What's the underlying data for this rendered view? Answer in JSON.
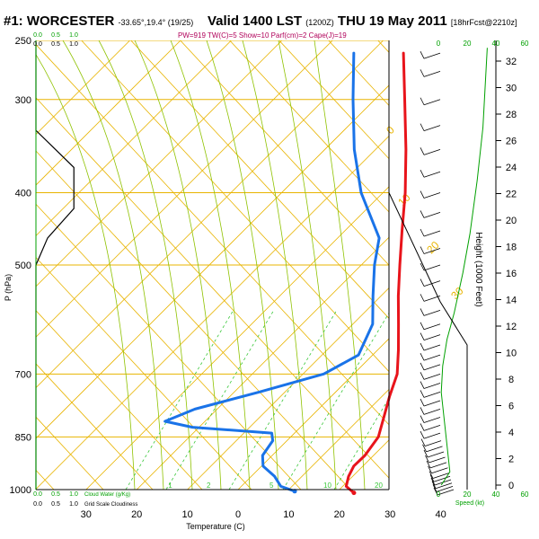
{
  "header": {
    "station": "#1: WORCESTER",
    "coords": "-33.65°,19.4° (19/25)",
    "valid": "Valid 1400 LST",
    "valid_z": "(1200Z)",
    "date": "THU 19 May 2011",
    "forecast": "[18hrFcst@2210z]",
    "indices": "PW=919 TW(C)=5 Show=10 Parf(cm)=2 Cape(J)=19"
  },
  "chart_data": {
    "type": "skew-t",
    "xlabel": "Temperature (C)",
    "ylabel": "P (hPa)",
    "y2label": "Height (1000 Feet)",
    "pressure_ticks": [
      250,
      300,
      400,
      500,
      700,
      850,
      1000
    ],
    "temperature_ticks": [
      -30,
      -20,
      -10,
      0,
      10,
      20,
      30,
      40
    ],
    "temperature_tick_labels": [
      "30",
      "20",
      "10",
      "0",
      "10",
      "20",
      "30",
      "40"
    ],
    "height_ticks": [
      0,
      2,
      4,
      6,
      8,
      10,
      12,
      14,
      16,
      18,
      20,
      22,
      24,
      26,
      28,
      30,
      32
    ],
    "mixing_ratio_labels": [
      ".1",
      "2",
      "5",
      "10",
      "20"
    ],
    "mixing_ratio_values": [
      0.1,
      2,
      5,
      10,
      20
    ],
    "isotherm_labels": [
      "0",
      "10",
      "20",
      "30"
    ],
    "cloud_water_label": "Cloud Water (g/Kg)",
    "grid_cloudiness_label": "Grid Scale Cloudiness",
    "cloud_scale_labels": [
      "0.0",
      "0.5",
      "1.0"
    ],
    "speed_label": "Speed (kt)",
    "speed_ticks": [
      "0",
      "20",
      "40",
      "60"
    ],
    "speed_ticks_low": [
      "0",
      "20"
    ],
    "cloudiness_profile": [
      {
        "p": 250,
        "v": 0.0
      },
      {
        "p": 330,
        "v": 0.0
      },
      {
        "p": 370,
        "v": 0.65
      },
      {
        "p": 420,
        "v": 0.65
      },
      {
        "p": 460,
        "v": 0.2
      },
      {
        "p": 500,
        "v": 0.0
      },
      {
        "p": 1000,
        "v": 0.0
      }
    ],
    "series": [
      {
        "name": "temperature",
        "color": "#e8141b",
        "points": [
          {
            "p": 1010,
            "t": 23.5
          },
          {
            "p": 990,
            "t": 20.7
          },
          {
            "p": 960,
            "t": 19.2
          },
          {
            "p": 930,
            "t": 18.2
          },
          {
            "p": 900,
            "t": 18.3
          },
          {
            "p": 850,
            "t": 17.3
          },
          {
            "p": 800,
            "t": 14.5
          },
          {
            "p": 750,
            "t": 11.5
          },
          {
            "p": 700,
            "t": 8.6
          },
          {
            "p": 650,
            "t": 4.1
          },
          {
            "p": 600,
            "t": -1.0
          },
          {
            "p": 550,
            "t": -6.6
          },
          {
            "p": 500,
            "t": -12.4
          },
          {
            "p": 450,
            "t": -18.7
          },
          {
            "p": 400,
            "t": -25.6
          },
          {
            "p": 350,
            "t": -34.0
          },
          {
            "p": 300,
            "t": -44.1
          },
          {
            "p": 260,
            "t": -53.5
          }
        ]
      },
      {
        "name": "dewpoint",
        "color": "#1a73e8",
        "points": [
          {
            "p": 1005,
            "t": 11.5
          },
          {
            "p": 990,
            "t": 7.8
          },
          {
            "p": 960,
            "t": 4.6
          },
          {
            "p": 930,
            "t": 0.3
          },
          {
            "p": 900,
            "t": -1.9
          },
          {
            "p": 860,
            "t": -2.8
          },
          {
            "p": 840,
            "t": -4.5
          },
          {
            "p": 825,
            "t": -21.3
          },
          {
            "p": 810,
            "t": -27.9
          },
          {
            "p": 780,
            "t": -24.4
          },
          {
            "p": 740,
            "t": -15.1
          },
          {
            "p": 700,
            "t": -5.9
          },
          {
            "p": 660,
            "t": -2.8
          },
          {
            "p": 600,
            "t": -6.1
          },
          {
            "p": 550,
            "t": -11.6
          },
          {
            "p": 500,
            "t": -17.4
          },
          {
            "p": 460,
            "t": -21.8
          },
          {
            "p": 400,
            "t": -34.3
          },
          {
            "p": 350,
            "t": -44.2
          },
          {
            "p": 300,
            "t": -54.3
          },
          {
            "p": 260,
            "t": -63.3
          }
        ]
      }
    ],
    "surface_temperature": 23.5,
    "surface_dewpoint": 11.5,
    "wind_barbs": [
      {
        "p": 1000,
        "spd": 5
      },
      {
        "p": 990,
        "spd": 5
      },
      {
        "p": 980,
        "spd": 10
      },
      {
        "p": 970,
        "spd": 10
      },
      {
        "p": 960,
        "spd": 10
      },
      {
        "p": 950,
        "spd": 10
      },
      {
        "p": 935,
        "spd": 10
      },
      {
        "p": 920,
        "spd": 10
      },
      {
        "p": 905,
        "spd": 10
      },
      {
        "p": 890,
        "spd": 10
      },
      {
        "p": 875,
        "spd": 10
      },
      {
        "p": 860,
        "spd": 10
      },
      {
        "p": 840,
        "spd": 10
      },
      {
        "p": 820,
        "spd": 10
      },
      {
        "p": 800,
        "spd": 10
      },
      {
        "p": 780,
        "spd": 10
      },
      {
        "p": 760,
        "spd": 10
      },
      {
        "p": 740,
        "spd": 10
      },
      {
        "p": 720,
        "spd": 10
      },
      {
        "p": 700,
        "spd": 10
      },
      {
        "p": 680,
        "spd": 10
      },
      {
        "p": 660,
        "spd": 10
      },
      {
        "p": 640,
        "spd": 10
      },
      {
        "p": 620,
        "spd": 10
      },
      {
        "p": 600,
        "spd": 10
      },
      {
        "p": 575,
        "spd": 10
      },
      {
        "p": 550,
        "spd": 10
      },
      {
        "p": 525,
        "spd": 10
      },
      {
        "p": 500,
        "spd": 10
      },
      {
        "p": 475,
        "spd": 10
      },
      {
        "p": 450,
        "spd": 10
      },
      {
        "p": 425,
        "spd": 10
      },
      {
        "p": 400,
        "spd": 10
      },
      {
        "p": 375,
        "spd": 10
      },
      {
        "p": 350,
        "spd": 10
      },
      {
        "p": 325,
        "spd": 10
      },
      {
        "p": 300,
        "spd": 10
      },
      {
        "p": 275,
        "spd": 10
      },
      {
        "p": 260,
        "spd": 10
      }
    ],
    "wind_speed_profile": [
      {
        "h": 0,
        "spd": 2
      },
      {
        "h": 1,
        "spd": 8
      },
      {
        "h": 3,
        "spd": 6
      },
      {
        "h": 5,
        "spd": 4
      },
      {
        "h": 7,
        "spd": 2
      },
      {
        "h": 9,
        "spd": 3
      },
      {
        "h": 11,
        "spd": 6
      },
      {
        "h": 13,
        "spd": 11
      },
      {
        "h": 16,
        "spd": 17
      },
      {
        "h": 19,
        "spd": 22
      },
      {
        "h": 23,
        "spd": 27
      },
      {
        "h": 27,
        "spd": 31
      },
      {
        "h": 31,
        "spd": 33
      },
      {
        "h": 33,
        "spd": 34
      }
    ],
    "colors": {
      "isobar": "#e8b400",
      "dry_adiabat": "#e8b400",
      "moist_adiabat": "#8fc200",
      "mixing_ratio": "#39c739",
      "axis_green": "#00a000",
      "indices_text": "#b0005a"
    }
  }
}
